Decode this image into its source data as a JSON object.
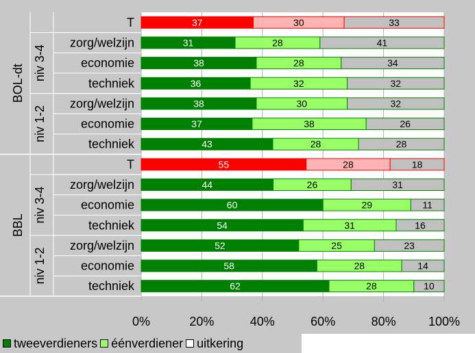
{
  "chart_data": {
    "type": "bar",
    "orientation": "horizontal-stacked-percent",
    "xlim": [
      0,
      100
    ],
    "x_ticks": [
      "0%",
      "20%",
      "40%",
      "60%",
      "80%",
      "100%"
    ],
    "groups": [
      {
        "label": "BOL-dt",
        "subgroups": [
          {
            "label": "",
            "rows": [
              {
                "category": "T",
                "values": [
                  37,
                  30,
                  33
                ],
                "total": true
              }
            ]
          },
          {
            "label": "niv 3-4",
            "rows": [
              {
                "category": "zorg/welzijn",
                "values": [
                  31,
                  28,
                  41
                ]
              },
              {
                "category": "economie",
                "values": [
                  38,
                  28,
                  34
                ]
              },
              {
                "category": "techniek",
                "values": [
                  36,
                  32,
                  32
                ]
              }
            ]
          },
          {
            "label": "niv 1-2",
            "rows": [
              {
                "category": "zorg/welzijn",
                "values": [
                  38,
                  30,
                  32
                ]
              },
              {
                "category": "economie",
                "values": [
                  37,
                  38,
                  26
                ]
              },
              {
                "category": "techniek",
                "values": [
                  43,
                  28,
                  28
                ]
              }
            ]
          }
        ]
      },
      {
        "label": "BBL",
        "subgroups": [
          {
            "label": "",
            "rows": [
              {
                "category": "T",
                "values": [
                  55,
                  28,
                  18
                ],
                "total": true
              }
            ]
          },
          {
            "label": "niv 3-4",
            "rows": [
              {
                "category": "zorg/welzijn",
                "values": [
                  44,
                  26,
                  31
                ]
              },
              {
                "category": "economie",
                "values": [
                  60,
                  29,
                  11
                ]
              },
              {
                "category": "techniek",
                "values": [
                  54,
                  31,
                  16
                ]
              }
            ]
          },
          {
            "label": "niv 1-2",
            "rows": [
              {
                "category": "zorg/welzijn",
                "values": [
                  52,
                  25,
                  23
                ]
              },
              {
                "category": "economie",
                "values": [
                  58,
                  28,
                  14
                ]
              },
              {
                "category": "techniek",
                "values": [
                  62,
                  28,
                  10
                ]
              }
            ]
          }
        ]
      }
    ],
    "series": [
      {
        "name": "tweeverdieners",
        "color": "#008000",
        "total_color": "#ff0000",
        "label_color": "#ffffff"
      },
      {
        "name": "éénverdiener",
        "color": "#99ff66",
        "total_color": "#ffb3b3",
        "label_color": "#000000"
      },
      {
        "name": "uitkering",
        "color": "#c0c0c0",
        "total_color": "#c0c0c0",
        "label_color": "#000000"
      }
    ],
    "grid": true,
    "legend": "bottom-left"
  },
  "colors": {
    "panel_background": "#c8c8c8",
    "plot_background": "#ffffff",
    "bar_border": "#008000",
    "total_border": "#ff0000",
    "grid": "#b0b0b0"
  }
}
